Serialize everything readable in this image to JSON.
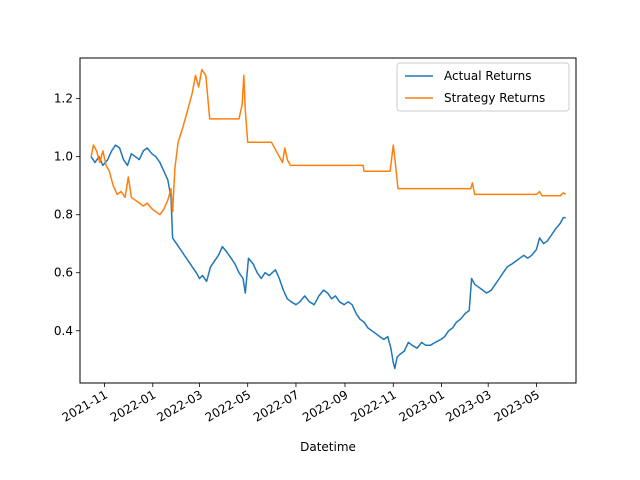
{
  "chart_data": {
    "type": "line",
    "title": "",
    "xlabel": "Datetime",
    "ylabel": "",
    "xlim": [
      "2021-10-01",
      "2023-06-20"
    ],
    "ylim": [
      0.22,
      1.34
    ],
    "x_ticks": [
      "2021-11-01",
      "2022-01-01",
      "2022-03-01",
      "2022-05-01",
      "2022-07-01",
      "2022-09-01",
      "2022-11-01",
      "2023-01-01",
      "2023-03-01",
      "2023-05-01"
    ],
    "x_tick_labels": [
      "2021-11",
      "2022-01",
      "2022-03",
      "2022-05",
      "2022-07",
      "2022-09",
      "2022-11",
      "2023-01",
      "2023-03",
      "2023-05"
    ],
    "y_ticks": [
      0.4,
      0.6,
      0.8,
      1.0,
      1.2
    ],
    "y_tick_labels": [
      "0.4",
      "0.6",
      "0.8",
      "1.0",
      "1.2"
    ],
    "grid": false,
    "legend_position": "top-right",
    "series": [
      {
        "name": "Actual Returns",
        "color": "#1f77b4",
        "points": [
          [
            "2021-10-15",
            1.0
          ],
          [
            "2021-10-20",
            0.98
          ],
          [
            "2021-10-25",
            1.0
          ],
          [
            "2021-10-30",
            0.97
          ],
          [
            "2021-11-05",
            0.99
          ],
          [
            "2021-11-10",
            1.02
          ],
          [
            "2021-11-15",
            1.04
          ],
          [
            "2021-11-20",
            1.03
          ],
          [
            "2021-11-25",
            0.99
          ],
          [
            "2021-11-30",
            0.97
          ],
          [
            "2021-12-05",
            1.01
          ],
          [
            "2021-12-10",
            1.0
          ],
          [
            "2021-12-15",
            0.99
          ],
          [
            "2021-12-20",
            1.02
          ],
          [
            "2021-12-25",
            1.03
          ],
          [
            "2021-12-31",
            1.01
          ],
          [
            "2022-01-05",
            1.0
          ],
          [
            "2022-01-10",
            0.98
          ],
          [
            "2022-01-15",
            0.95
          ],
          [
            "2022-01-20",
            0.92
          ],
          [
            "2022-01-24",
            0.86
          ],
          [
            "2022-01-26",
            0.72
          ],
          [
            "2022-01-31",
            0.7
          ],
          [
            "2022-02-05",
            0.68
          ],
          [
            "2022-02-10",
            0.66
          ],
          [
            "2022-02-15",
            0.64
          ],
          [
            "2022-02-20",
            0.62
          ],
          [
            "2022-02-25",
            0.6
          ],
          [
            "2022-03-01",
            0.58
          ],
          [
            "2022-03-05",
            0.59
          ],
          [
            "2022-03-10",
            0.57
          ],
          [
            "2022-03-15",
            0.62
          ],
          [
            "2022-03-20",
            0.64
          ],
          [
            "2022-03-25",
            0.66
          ],
          [
            "2022-03-30",
            0.69
          ],
          [
            "2022-04-05",
            0.67
          ],
          [
            "2022-04-10",
            0.65
          ],
          [
            "2022-04-15",
            0.63
          ],
          [
            "2022-04-20",
            0.6
          ],
          [
            "2022-04-25",
            0.58
          ],
          [
            "2022-04-28",
            0.53
          ],
          [
            "2022-05-02",
            0.65
          ],
          [
            "2022-05-08",
            0.63
          ],
          [
            "2022-05-13",
            0.6
          ],
          [
            "2022-05-18",
            0.58
          ],
          [
            "2022-05-23",
            0.6
          ],
          [
            "2022-05-28",
            0.59
          ],
          [
            "2022-06-05",
            0.61
          ],
          [
            "2022-06-10",
            0.58
          ],
          [
            "2022-06-15",
            0.54
          ],
          [
            "2022-06-20",
            0.51
          ],
          [
            "2022-06-25",
            0.5
          ],
          [
            "2022-07-01",
            0.49
          ],
          [
            "2022-07-06",
            0.5
          ],
          [
            "2022-07-12",
            0.52
          ],
          [
            "2022-07-18",
            0.5
          ],
          [
            "2022-07-24",
            0.49
          ],
          [
            "2022-07-30",
            0.52
          ],
          [
            "2022-08-05",
            0.54
          ],
          [
            "2022-08-10",
            0.53
          ],
          [
            "2022-08-15",
            0.51
          ],
          [
            "2022-08-20",
            0.52
          ],
          [
            "2022-08-25",
            0.5
          ],
          [
            "2022-08-31",
            0.49
          ],
          [
            "2022-09-05",
            0.5
          ],
          [
            "2022-09-10",
            0.49
          ],
          [
            "2022-09-15",
            0.46
          ],
          [
            "2022-09-20",
            0.44
          ],
          [
            "2022-09-25",
            0.43
          ],
          [
            "2022-09-30",
            0.41
          ],
          [
            "2022-10-05",
            0.4
          ],
          [
            "2022-10-10",
            0.39
          ],
          [
            "2022-10-15",
            0.38
          ],
          [
            "2022-10-20",
            0.37
          ],
          [
            "2022-10-25",
            0.38
          ],
          [
            "2022-10-29",
            0.34
          ],
          [
            "2022-11-01",
            0.29
          ],
          [
            "2022-11-03",
            0.27
          ],
          [
            "2022-11-06",
            0.31
          ],
          [
            "2022-11-10",
            0.32
          ],
          [
            "2022-11-15",
            0.33
          ],
          [
            "2022-11-20",
            0.36
          ],
          [
            "2022-11-25",
            0.35
          ],
          [
            "2022-12-01",
            0.34
          ],
          [
            "2022-12-07",
            0.36
          ],
          [
            "2022-12-12",
            0.35
          ],
          [
            "2022-12-18",
            0.35
          ],
          [
            "2022-12-24",
            0.36
          ],
          [
            "2022-12-31",
            0.37
          ],
          [
            "2023-01-05",
            0.38
          ],
          [
            "2023-01-10",
            0.4
          ],
          [
            "2023-01-15",
            0.41
          ],
          [
            "2023-01-20",
            0.43
          ],
          [
            "2023-01-25",
            0.44
          ],
          [
            "2023-01-31",
            0.46
          ],
          [
            "2023-02-05",
            0.47
          ],
          [
            "2023-02-08",
            0.58
          ],
          [
            "2023-02-12",
            0.56
          ],
          [
            "2023-02-17",
            0.55
          ],
          [
            "2023-02-22",
            0.54
          ],
          [
            "2023-02-27",
            0.53
          ],
          [
            "2023-03-05",
            0.54
          ],
          [
            "2023-03-10",
            0.56
          ],
          [
            "2023-03-15",
            0.58
          ],
          [
            "2023-03-20",
            0.6
          ],
          [
            "2023-03-25",
            0.62
          ],
          [
            "2023-03-31",
            0.63
          ],
          [
            "2023-04-05",
            0.64
          ],
          [
            "2023-04-10",
            0.65
          ],
          [
            "2023-04-15",
            0.66
          ],
          [
            "2023-04-20",
            0.65
          ],
          [
            "2023-04-25",
            0.66
          ],
          [
            "2023-05-01",
            0.68
          ],
          [
            "2023-05-05",
            0.72
          ],
          [
            "2023-05-10",
            0.7
          ],
          [
            "2023-05-15",
            0.71
          ],
          [
            "2023-05-20",
            0.73
          ],
          [
            "2023-05-25",
            0.75
          ],
          [
            "2023-05-31",
            0.77
          ],
          [
            "2023-06-04",
            0.79
          ],
          [
            "2023-06-07",
            0.79
          ]
        ]
      },
      {
        "name": "Strategy Returns",
        "color": "#ff7f0e",
        "points": [
          [
            "2021-10-15",
            1.0
          ],
          [
            "2021-10-18",
            1.04
          ],
          [
            "2021-10-22",
            1.02
          ],
          [
            "2021-10-26",
            0.98
          ],
          [
            "2021-10-30",
            1.02
          ],
          [
            "2021-11-03",
            0.97
          ],
          [
            "2021-11-07",
            0.95
          ],
          [
            "2021-11-12",
            0.9
          ],
          [
            "2021-11-17",
            0.87
          ],
          [
            "2021-11-22",
            0.88
          ],
          [
            "2021-11-27",
            0.86
          ],
          [
            "2021-12-01",
            0.93
          ],
          [
            "2021-12-05",
            0.86
          ],
          [
            "2021-12-10",
            0.85
          ],
          [
            "2021-12-15",
            0.84
          ],
          [
            "2021-12-20",
            0.83
          ],
          [
            "2021-12-25",
            0.84
          ],
          [
            "2021-12-31",
            0.82
          ],
          [
            "2022-01-05",
            0.81
          ],
          [
            "2022-01-10",
            0.8
          ],
          [
            "2022-01-15",
            0.82
          ],
          [
            "2022-01-20",
            0.85
          ],
          [
            "2022-01-24",
            0.89
          ],
          [
            "2022-01-26",
            0.81
          ],
          [
            "2022-01-29",
            0.96
          ],
          [
            "2022-02-02",
            1.05
          ],
          [
            "2022-02-08",
            1.1
          ],
          [
            "2022-02-14",
            1.16
          ],
          [
            "2022-02-20",
            1.22
          ],
          [
            "2022-02-24",
            1.28
          ],
          [
            "2022-02-28",
            1.24
          ],
          [
            "2022-03-04",
            1.3
          ],
          [
            "2022-03-09",
            1.28
          ],
          [
            "2022-03-14",
            1.13
          ],
          [
            "2022-03-20",
            1.13
          ],
          [
            "2022-03-30",
            1.13
          ],
          [
            "2022-04-10",
            1.13
          ],
          [
            "2022-04-20",
            1.13
          ],
          [
            "2022-04-24",
            1.18
          ],
          [
            "2022-04-26",
            1.28
          ],
          [
            "2022-04-28",
            1.16
          ],
          [
            "2022-05-01",
            1.05
          ],
          [
            "2022-05-15",
            1.05
          ],
          [
            "2022-05-31",
            1.05
          ],
          [
            "2022-06-10",
            1.0
          ],
          [
            "2022-06-14",
            0.98
          ],
          [
            "2022-06-17",
            1.03
          ],
          [
            "2022-06-20",
            0.99
          ],
          [
            "2022-06-24",
            0.97
          ],
          [
            "2022-07-10",
            0.97
          ],
          [
            "2022-07-31",
            0.97
          ],
          [
            "2022-08-20",
            0.97
          ],
          [
            "2022-09-15",
            0.97
          ],
          [
            "2022-09-24",
            0.97
          ],
          [
            "2022-09-25",
            0.95
          ],
          [
            "2022-10-10",
            0.95
          ],
          [
            "2022-10-28",
            0.95
          ],
          [
            "2022-11-01",
            1.04
          ],
          [
            "2022-11-04",
            0.97
          ],
          [
            "2022-11-07",
            0.89
          ],
          [
            "2022-12-01",
            0.89
          ],
          [
            "2023-01-01",
            0.89
          ],
          [
            "2023-02-01",
            0.89
          ],
          [
            "2023-02-07",
            0.89
          ],
          [
            "2023-02-09",
            0.91
          ],
          [
            "2023-02-12",
            0.87
          ],
          [
            "2023-03-01",
            0.87
          ],
          [
            "2023-04-01",
            0.87
          ],
          [
            "2023-05-01",
            0.87
          ],
          [
            "2023-05-05",
            0.88
          ],
          [
            "2023-05-08",
            0.865
          ],
          [
            "2023-05-31",
            0.865
          ],
          [
            "2023-06-04",
            0.875
          ],
          [
            "2023-06-07",
            0.87
          ]
        ]
      }
    ]
  }
}
